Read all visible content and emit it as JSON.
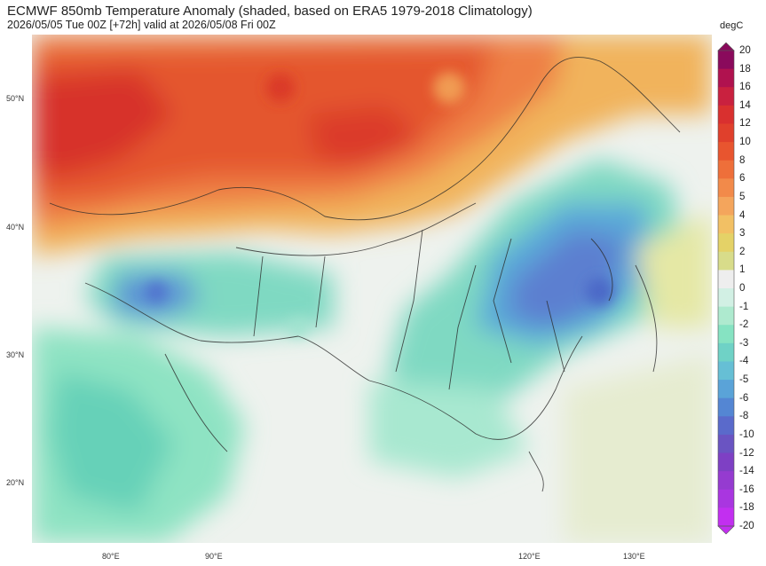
{
  "title": "ECMWF 850mb Temperature Anomaly (shaded, based on ERA5 1979-2018 Climatology)",
  "subtitle": "2026/05/05 Tue 00Z [+72h] valid at 2026/05/08 Fri 00Z",
  "map": {
    "variable": "850mb temperature anomaly",
    "units": "degC",
    "lat_labels": [
      "50°N",
      "40°N",
      "30°N",
      "20°N"
    ],
    "lon_labels": [
      "80°E",
      "90°E",
      "120°E",
      "130°E"
    ]
  },
  "colorbar": {
    "unit": "degC",
    "levels": [
      "20",
      "18",
      "16",
      "14",
      "12",
      "10",
      "8",
      "6",
      "5",
      "4",
      "3",
      "2",
      "1",
      "0",
      "-1",
      "-2",
      "-3",
      "-4",
      "-5",
      "-6",
      "-8",
      "-10",
      "-12",
      "-14",
      "-16",
      "-18",
      "-20"
    ],
    "colors": [
      "#8a0a5c",
      "#b0124f",
      "#c9213f",
      "#d9302f",
      "#e0402c",
      "#e8552f",
      "#ee6f3a",
      "#f28a4a",
      "#f4a55c",
      "#f2c064",
      "#e4d267",
      "#d8dc8a",
      "#eeeeee",
      "#d2f0e4",
      "#aeeacf",
      "#86e3c2",
      "#6fd2c6",
      "#66bfd5",
      "#5aa3d8",
      "#5486d3",
      "#5a6acb",
      "#6a54c2",
      "#7e40c4",
      "#953bd0",
      "#a936e0",
      "#c22ff0"
    ]
  }
}
